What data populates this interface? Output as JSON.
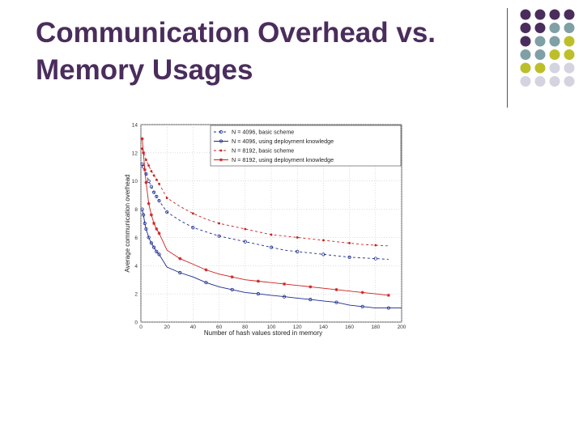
{
  "slide": {
    "title_line1": "Communication Overhead vs.",
    "title_line2": "Memory Usages"
  },
  "decoration": {
    "dot_colors": {
      "purple": "#4a2d5c",
      "teal": "#7fa0a4",
      "olive": "#bcbf2a",
      "lilac": "#d4d4e0"
    }
  },
  "chart_data": {
    "type": "line",
    "xlabel": "Number of hash values stored in memory",
    "ylabel": "Average communication overhead",
    "xlim": [
      0,
      200
    ],
    "ylim": [
      0,
      14
    ],
    "xticks": [
      0,
      20,
      40,
      60,
      80,
      100,
      120,
      140,
      160,
      180,
      200
    ],
    "yticks": [
      0,
      2,
      4,
      6,
      8,
      10,
      12,
      14
    ],
    "grid": true,
    "legend_position": "top-right",
    "series": [
      {
        "name": "N = 4096, basic scheme",
        "color": "#1a2a8a",
        "dash": "3,3",
        "marker": "circle",
        "x": [
          1,
          2,
          4,
          6,
          8,
          10,
          12,
          14,
          20,
          30,
          40,
          50,
          60,
          70,
          80,
          90,
          100,
          110,
          120,
          130,
          140,
          150,
          160,
          170,
          180,
          190
        ],
        "y": [
          11.2,
          11.0,
          10.5,
          10.0,
          9.6,
          9.2,
          8.9,
          8.6,
          7.8,
          7.2,
          6.7,
          6.4,
          6.1,
          5.9,
          5.7,
          5.5,
          5.3,
          5.1,
          5.0,
          4.9,
          4.8,
          4.7,
          4.6,
          4.55,
          4.5,
          4.45
        ]
      },
      {
        "name": "N = 4096, using deployment knowledge",
        "color": "#1a2a8a",
        "dash": "",
        "marker": "circle",
        "x": [
          1,
          2,
          3,
          4,
          6,
          8,
          10,
          12,
          14,
          20,
          30,
          40,
          50,
          60,
          70,
          80,
          90,
          100,
          110,
          120,
          130,
          140,
          150,
          160,
          170,
          180,
          190,
          200
        ],
        "y": [
          8.0,
          7.6,
          7.0,
          6.6,
          6.0,
          5.6,
          5.3,
          5.0,
          4.8,
          3.9,
          3.5,
          3.2,
          2.8,
          2.5,
          2.3,
          2.1,
          2.0,
          1.9,
          1.8,
          1.7,
          1.6,
          1.5,
          1.4,
          1.2,
          1.1,
          1.0,
          1.0,
          1.0
        ]
      },
      {
        "name": "N = 8192, basic scheme",
        "color": "#cc1f1f",
        "dash": "3,3",
        "marker": "dot",
        "x": [
          1,
          2,
          4,
          6,
          8,
          10,
          12,
          14,
          20,
          30,
          40,
          50,
          60,
          70,
          80,
          90,
          100,
          110,
          120,
          130,
          140,
          150,
          160,
          170,
          180,
          190
        ],
        "y": [
          12.3,
          12.0,
          11.5,
          11.1,
          10.7,
          10.4,
          10.1,
          9.8,
          8.8,
          8.2,
          7.7,
          7.3,
          7.0,
          6.8,
          6.6,
          6.4,
          6.2,
          6.1,
          6.0,
          5.9,
          5.8,
          5.7,
          5.6,
          5.5,
          5.45,
          5.4
        ]
      },
      {
        "name": "N = 8192, using deployment knowledge",
        "color": "#cc1f1f",
        "dash": "",
        "marker": "star",
        "x": [
          1,
          2,
          3,
          4,
          6,
          8,
          10,
          12,
          14,
          20,
          30,
          40,
          50,
          60,
          70,
          80,
          90,
          100,
          110,
          120,
          130,
          140,
          150,
          160,
          170,
          180,
          190
        ],
        "y": [
          13.0,
          12.0,
          10.8,
          9.9,
          8.4,
          7.6,
          7.0,
          6.6,
          6.3,
          5.1,
          4.5,
          4.1,
          3.7,
          3.4,
          3.2,
          3.0,
          2.9,
          2.8,
          2.7,
          2.6,
          2.5,
          2.4,
          2.3,
          2.2,
          2.1,
          2.0,
          1.9
        ]
      }
    ]
  }
}
